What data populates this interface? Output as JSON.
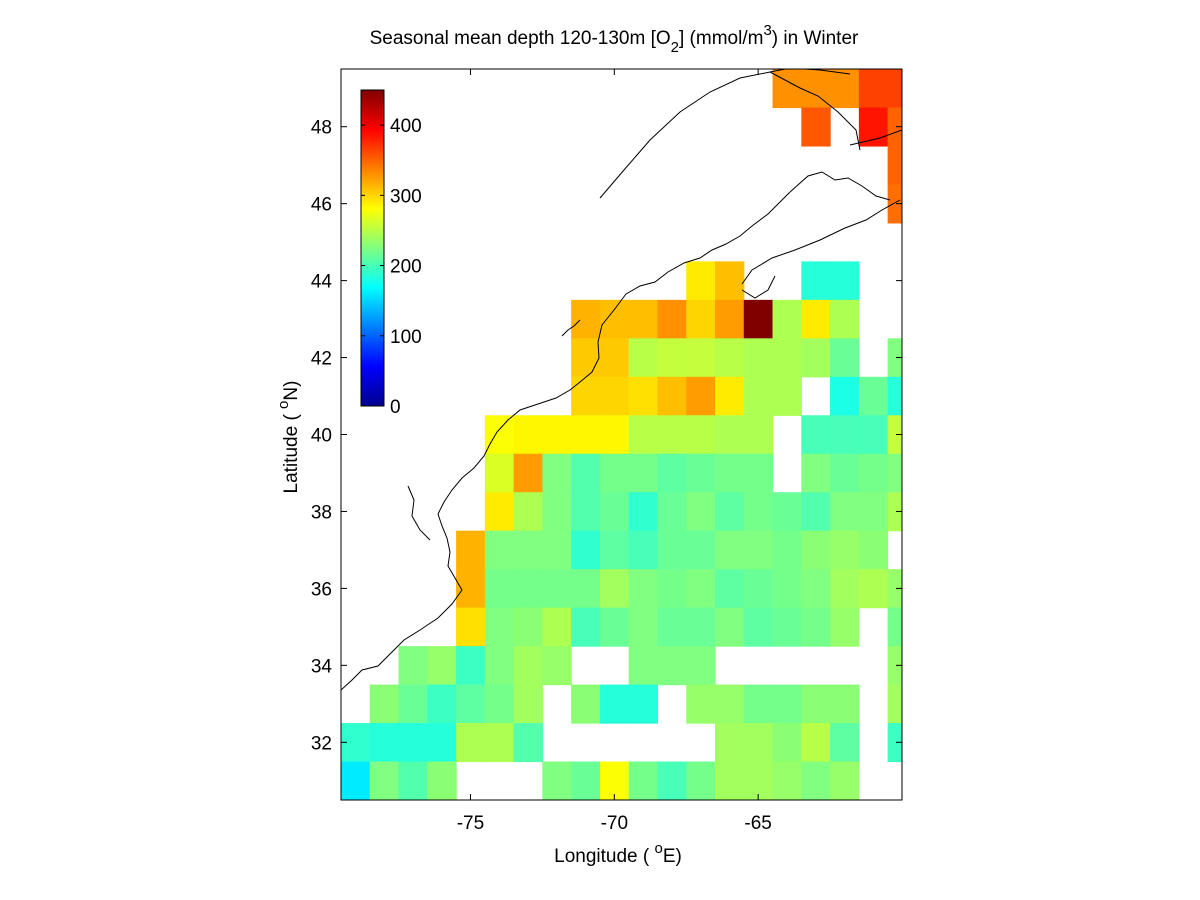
{
  "chart_data": {
    "type": "heatmap",
    "title": {
      "prefix": "Seasonal mean depth 120-130m [O",
      "sub": "2",
      "middle": "] (mmol/m",
      "sup": "3",
      "suffix": ") in  Winter"
    },
    "xlabel": {
      "prefix": "Longitude ( ",
      "sup": "o",
      "suffix": "E)"
    },
    "ylabel": {
      "prefix": "Latitude ( ",
      "sup": "o",
      "suffix": "N)"
    },
    "xlim": [
      -79.5,
      -60
    ],
    "ylim": [
      30.5,
      49.5
    ],
    "xticks": [
      -75,
      -70,
      -65
    ],
    "yticks": [
      32,
      34,
      36,
      38,
      40,
      42,
      44,
      46,
      48
    ],
    "colorbar": {
      "colormap": "jet",
      "clim": [
        0,
        450
      ],
      "ticks": [
        0,
        100,
        200,
        300,
        400
      ]
    },
    "grid": false,
    "cell_size_deg": 1,
    "col_lons": [
      -79,
      -78,
      -77,
      -76,
      -75,
      -74,
      -73,
      -72,
      -71,
      -70,
      -69,
      -68,
      -67,
      -66,
      -65,
      -64,
      -63,
      -62,
      -61,
      -60
    ],
    "row_lats": [
      49,
      48,
      47,
      46,
      45,
      44,
      43,
      42,
      41,
      40,
      39,
      38,
      37,
      36,
      35,
      34,
      33,
      32,
      31,
      30
    ],
    "grid_values": [
      [
        null,
        null,
        null,
        null,
        null,
        null,
        null,
        null,
        null,
        null,
        null,
        null,
        null,
        null,
        null,
        330,
        330,
        330,
        365,
        365
      ],
      [
        null,
        null,
        null,
        null,
        null,
        null,
        null,
        null,
        null,
        null,
        null,
        null,
        null,
        null,
        null,
        null,
        355,
        null,
        385,
        350
      ],
      [
        null,
        null,
        null,
        null,
        null,
        null,
        null,
        null,
        null,
        null,
        null,
        null,
        null,
        null,
        null,
        null,
        null,
        null,
        null,
        350
      ],
      [
        null,
        null,
        null,
        null,
        null,
        null,
        null,
        null,
        null,
        null,
        null,
        null,
        null,
        null,
        null,
        null,
        null,
        null,
        null,
        345
      ],
      [
        null,
        null,
        null,
        null,
        null,
        null,
        null,
        null,
        null,
        null,
        null,
        null,
        null,
        null,
        null,
        null,
        null,
        null,
        null,
        null
      ],
      [
        null,
        null,
        null,
        null,
        null,
        null,
        null,
        null,
        null,
        null,
        null,
        null,
        290,
        310,
        null,
        null,
        185,
        185,
        null,
        null
      ],
      [
        null,
        null,
        null,
        null,
        null,
        null,
        null,
        null,
        315,
        310,
        310,
        330,
        300,
        325,
        450,
        245,
        290,
        245,
        null,
        null
      ],
      [
        null,
        null,
        null,
        null,
        null,
        null,
        null,
        null,
        305,
        305,
        250,
        255,
        255,
        250,
        245,
        245,
        240,
        215,
        null,
        225
      ],
      [
        null,
        null,
        null,
        null,
        null,
        null,
        null,
        null,
        300,
        300,
        295,
        310,
        325,
        290,
        245,
        245,
        null,
        180,
        215,
        185
      ],
      [
        null,
        null,
        null,
        null,
        null,
        280,
        285,
        285,
        285,
        285,
        250,
        250,
        250,
        245,
        245,
        null,
        200,
        200,
        200,
        255
      ],
      [
        null,
        null,
        null,
        null,
        null,
        265,
        325,
        225,
        205,
        220,
        220,
        210,
        215,
        220,
        220,
        null,
        225,
        215,
        220,
        225
      ],
      [
        null,
        null,
        null,
        null,
        null,
        290,
        245,
        225,
        205,
        215,
        190,
        215,
        225,
        210,
        220,
        215,
        205,
        225,
        225,
        245
      ],
      [
        null,
        null,
        null,
        null,
        315,
        225,
        225,
        225,
        190,
        210,
        200,
        215,
        215,
        225,
        225,
        220,
        230,
        235,
        230,
        null
      ],
      [
        null,
        null,
        null,
        null,
        315,
        220,
        220,
        220,
        220,
        240,
        225,
        220,
        225,
        210,
        215,
        220,
        225,
        240,
        245,
        235
      ],
      [
        null,
        null,
        null,
        null,
        295,
        225,
        230,
        245,
        200,
        215,
        225,
        215,
        215,
        225,
        210,
        215,
        220,
        235,
        null,
        220
      ],
      [
        null,
        null,
        225,
        235,
        195,
        225,
        240,
        235,
        null,
        null,
        225,
        225,
        225,
        null,
        null,
        null,
        null,
        null,
        null,
        235
      ],
      [
        null,
        230,
        215,
        195,
        210,
        220,
        240,
        null,
        230,
        185,
        185,
        null,
        235,
        235,
        220,
        220,
        230,
        230,
        null,
        240
      ],
      [
        190,
        185,
        185,
        185,
        245,
        245,
        205,
        null,
        null,
        null,
        null,
        null,
        null,
        240,
        240,
        230,
        250,
        210,
        null,
        195
      ],
      [
        160,
        225,
        205,
        230,
        null,
        null,
        null,
        225,
        215,
        280,
        220,
        200,
        220,
        240,
        240,
        235,
        225,
        235,
        null,
        null
      ],
      [
        170,
        null,
        null,
        null,
        null,
        null,
        null,
        210,
        215,
        215,
        215,
        null,
        null,
        null,
        null,
        null,
        null,
        null,
        null,
        null
      ]
    ]
  }
}
